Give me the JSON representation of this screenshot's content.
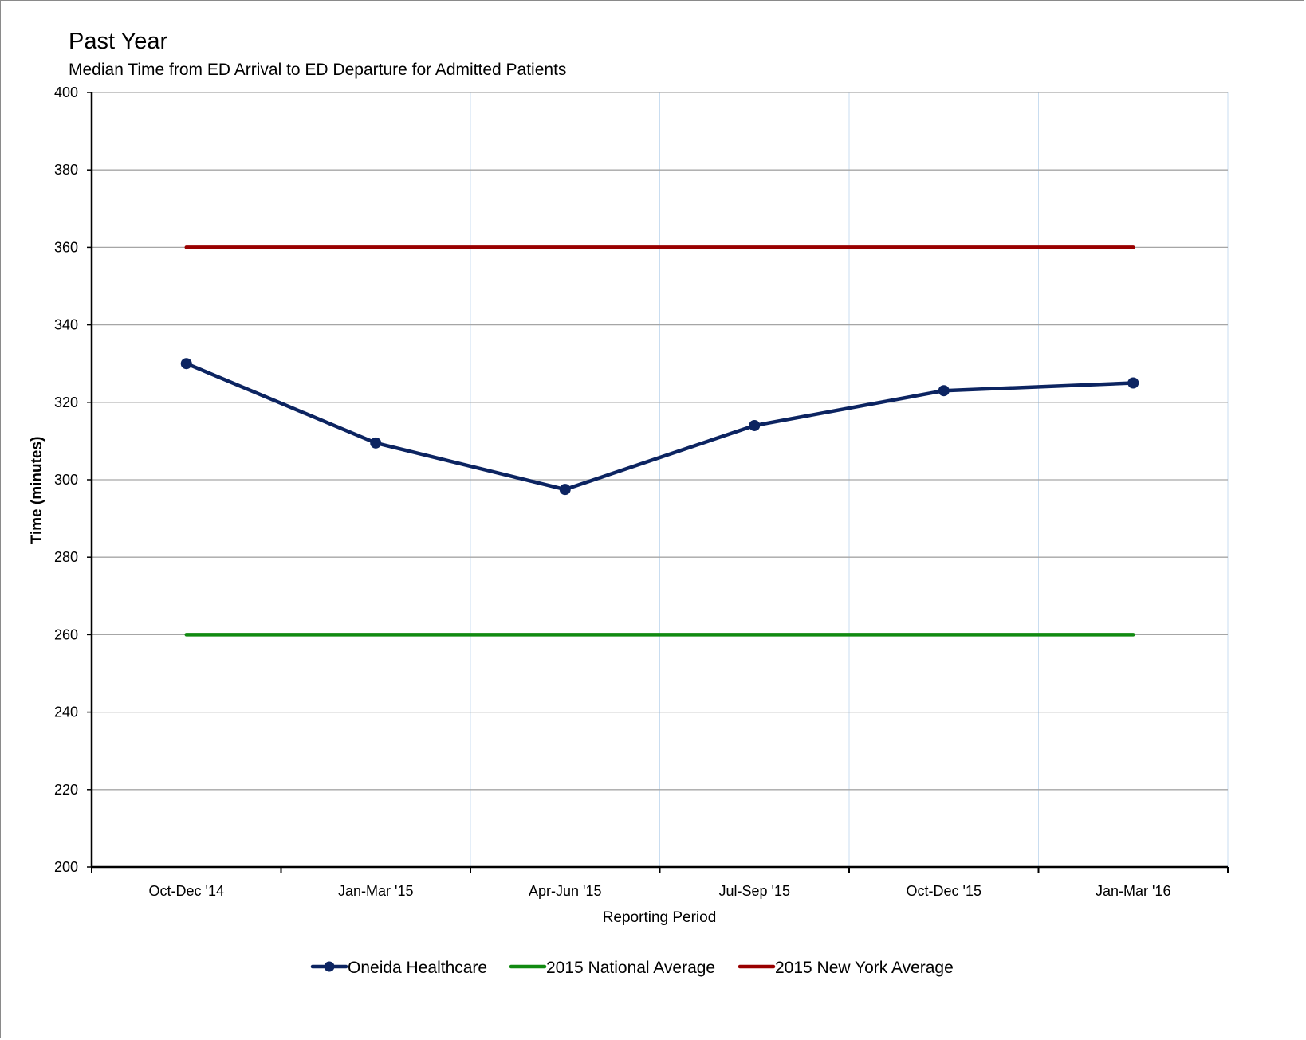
{
  "header": {
    "title": "Past Year",
    "subtitle": "Median Time from ED Arrival to ED Departure for Admitted Patients"
  },
  "colors": {
    "oneida": "#0c2461",
    "national": "#118a11",
    "newyork": "#990000",
    "hgrid": "#a6a6a6",
    "vgrid": "#c9ddf0",
    "axis": "#000000"
  },
  "chart_data": {
    "type": "line",
    "title": "Past Year",
    "subtitle": "Median Time from ED Arrival to ED Departure for Admitted Patients",
    "xlabel": "Reporting Period",
    "ylabel": "Time (minutes)",
    "ylim": [
      200,
      400
    ],
    "yticks": [
      200,
      220,
      240,
      260,
      280,
      300,
      320,
      340,
      360,
      380,
      400
    ],
    "categories": [
      "Oct-Dec '14",
      "Jan-Mar '15",
      "Apr-Jun '15",
      "Jul-Sep '15",
      "Oct-Dec '15",
      "Jan-Mar '16"
    ],
    "series": [
      {
        "name": "Oneida Healthcare",
        "values": [
          330,
          309.5,
          297.5,
          314,
          323,
          325
        ],
        "markers": true
      },
      {
        "name": "2015 National Average",
        "values": [
          260,
          260,
          260,
          260,
          260,
          260
        ],
        "markers": false
      },
      {
        "name": "2015 New York Average",
        "values": [
          360,
          360,
          360,
          360,
          360,
          360
        ],
        "markers": false
      }
    ],
    "grid": true,
    "legend_position": "bottom"
  }
}
